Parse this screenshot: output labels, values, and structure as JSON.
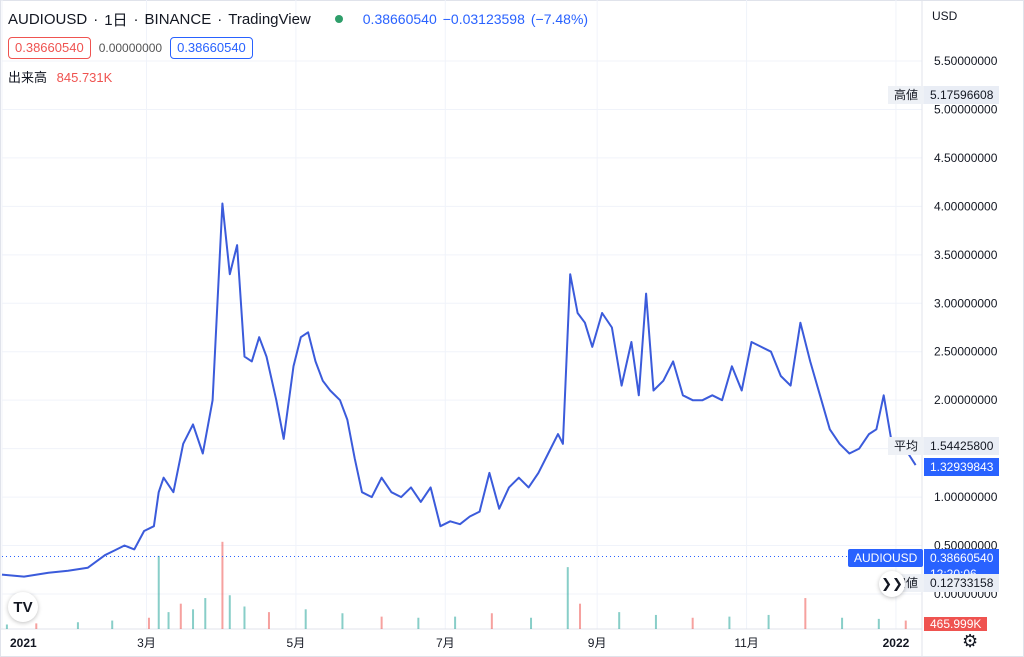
{
  "header": {
    "symbol": "AUDIOUSD",
    "interval": "1日",
    "exchange": "BINANCE",
    "source": "TradingView",
    "last_price": "0.38660540",
    "change": "−0.03123598",
    "change_pct": "(−7.48%)",
    "bid": "0.38660540",
    "spread": "0.00000000",
    "ask": "0.38660540",
    "volume_label": "出来高",
    "volume_value": "845.731K",
    "currency": "USD"
  },
  "tags": {
    "high_label": "高値",
    "high_value": "5.17596608",
    "avg_label": "平均",
    "avg_value": "1.54425800",
    "prev_value": "1.32939843",
    "symbol_label": "AUDIOUSD",
    "symbol_value": "0.38660540",
    "countdown": "12:20:06",
    "low_label": "安値",
    "low_value": "0.12733158",
    "volume_value": "465.999K"
  },
  "colors": {
    "line": "#3b5bdb",
    "up": "#26a69a",
    "down": "#ef5350",
    "accent": "#2962ff"
  },
  "chart_data": {
    "type": "line",
    "title": "AUDIOUSD",
    "y_ticks": [
      "5.50000000",
      "5.00000000",
      "4.50000000",
      "4.00000000",
      "3.50000000",
      "3.00000000",
      "2.50000000",
      "2.00000000",
      "1.50000000",
      "1.00000000",
      "0.50000000",
      "0.00000000"
    ],
    "x_ticks": [
      "2021",
      "3月",
      "5月",
      "7月",
      "9月",
      "11月",
      "2022"
    ],
    "ylim": [
      0,
      5.5
    ],
    "series": [
      {
        "points": [
          [
            "2021-01-01",
            0.2
          ],
          [
            "2021-01-10",
            0.18
          ],
          [
            "2021-01-20",
            0.22
          ],
          [
            "2021-01-28",
            0.24
          ],
          [
            "2021-02-05",
            0.27
          ],
          [
            "2021-02-12",
            0.4
          ],
          [
            "2021-02-16",
            0.45
          ],
          [
            "2021-02-20",
            0.5
          ],
          [
            "2021-02-24",
            0.46
          ],
          [
            "2021-02-28",
            0.65
          ],
          [
            "2021-03-04",
            0.7
          ],
          [
            "2021-03-06",
            1.05
          ],
          [
            "2021-03-08",
            1.2
          ],
          [
            "2021-03-12",
            1.05
          ],
          [
            "2021-03-16",
            1.55
          ],
          [
            "2021-03-20",
            1.75
          ],
          [
            "2021-03-24",
            1.45
          ],
          [
            "2021-03-28",
            2.0
          ],
          [
            "2021-04-01",
            4.03
          ],
          [
            "2021-04-04",
            3.3
          ],
          [
            "2021-04-07",
            3.6
          ],
          [
            "2021-04-10",
            2.45
          ],
          [
            "2021-04-13",
            2.4
          ],
          [
            "2021-04-16",
            2.65
          ],
          [
            "2021-04-19",
            2.45
          ],
          [
            "2021-04-23",
            2.0
          ],
          [
            "2021-04-26",
            1.6
          ],
          [
            "2021-04-30",
            2.35
          ],
          [
            "2021-05-03",
            2.65
          ],
          [
            "2021-05-06",
            2.7
          ],
          [
            "2021-05-09",
            2.4
          ],
          [
            "2021-05-12",
            2.2
          ],
          [
            "2021-05-15",
            2.1
          ],
          [
            "2021-05-19",
            2.0
          ],
          [
            "2021-05-22",
            1.8
          ],
          [
            "2021-05-25",
            1.4
          ],
          [
            "2021-05-28",
            1.05
          ],
          [
            "2021-06-01",
            1.0
          ],
          [
            "2021-06-05",
            1.2
          ],
          [
            "2021-06-09",
            1.05
          ],
          [
            "2021-06-13",
            1.0
          ],
          [
            "2021-06-17",
            1.1
          ],
          [
            "2021-06-21",
            0.95
          ],
          [
            "2021-06-25",
            1.1
          ],
          [
            "2021-06-29",
            0.7
          ],
          [
            "2021-07-03",
            0.75
          ],
          [
            "2021-07-07",
            0.72
          ],
          [
            "2021-07-11",
            0.8
          ],
          [
            "2021-07-15",
            0.85
          ],
          [
            "2021-07-19",
            1.25
          ],
          [
            "2021-07-23",
            0.88
          ],
          [
            "2021-07-27",
            1.1
          ],
          [
            "2021-07-31",
            1.2
          ],
          [
            "2021-08-04",
            1.1
          ],
          [
            "2021-08-08",
            1.25
          ],
          [
            "2021-08-12",
            1.45
          ],
          [
            "2021-08-16",
            1.65
          ],
          [
            "2021-08-18",
            1.55
          ],
          [
            "2021-08-21",
            3.3
          ],
          [
            "2021-08-24",
            2.9
          ],
          [
            "2021-08-27",
            2.8
          ],
          [
            "2021-08-30",
            2.55
          ],
          [
            "2021-09-03",
            2.9
          ],
          [
            "2021-09-07",
            2.75
          ],
          [
            "2021-09-11",
            2.15
          ],
          [
            "2021-09-15",
            2.6
          ],
          [
            "2021-09-18",
            2.05
          ],
          [
            "2021-09-21",
            3.1
          ],
          [
            "2021-09-24",
            2.1
          ],
          [
            "2021-09-28",
            2.2
          ],
          [
            "2021-10-02",
            2.4
          ],
          [
            "2021-10-06",
            2.05
          ],
          [
            "2021-10-10",
            2.0
          ],
          [
            "2021-10-14",
            2.0
          ],
          [
            "2021-10-18",
            2.05
          ],
          [
            "2021-10-22",
            2.0
          ],
          [
            "2021-10-26",
            2.35
          ],
          [
            "2021-10-30",
            2.1
          ],
          [
            "2021-11-03",
            2.6
          ],
          [
            "2021-11-07",
            2.55
          ],
          [
            "2021-11-11",
            2.5
          ],
          [
            "2021-11-15",
            2.25
          ],
          [
            "2021-11-19",
            2.15
          ],
          [
            "2021-11-23",
            2.8
          ],
          [
            "2021-11-27",
            2.4
          ],
          [
            "2021-12-01",
            2.05
          ],
          [
            "2021-12-05",
            1.7
          ],
          [
            "2021-12-09",
            1.55
          ],
          [
            "2021-12-13",
            1.45
          ],
          [
            "2021-12-17",
            1.5
          ],
          [
            "2021-12-21",
            1.65
          ],
          [
            "2021-12-24",
            1.7
          ],
          [
            "2021-12-27",
            2.05
          ],
          [
            "2021-12-30",
            1.6
          ],
          [
            "2022-01-02",
            1.6
          ],
          [
            "2022-01-06",
            1.45
          ],
          [
            "2022-01-09",
            1.33
          ]
        ]
      }
    ],
    "reference_lines": [
      {
        "label": "AUDIOUSD",
        "value": 0.3866
      }
    ],
    "volume": {
      "label": "出来高",
      "values": [
        [
          "2021-01-03",
          0.08
        ],
        [
          "2021-01-15",
          0.1
        ],
        [
          "2021-02-01",
          0.12
        ],
        [
          "2021-02-15",
          0.15
        ],
        [
          "2021-03-02",
          0.2
        ],
        [
          "2021-03-06",
          1.3
        ],
        [
          "2021-03-10",
          0.3
        ],
        [
          "2021-03-15",
          0.45
        ],
        [
          "2021-03-20",
          0.35
        ],
        [
          "2021-03-25",
          0.55
        ],
        [
          "2021-04-01",
          1.55
        ],
        [
          "2021-04-04",
          0.6
        ],
        [
          "2021-04-10",
          0.4
        ],
        [
          "2021-04-20",
          0.3
        ],
        [
          "2021-05-05",
          0.35
        ],
        [
          "2021-05-20",
          0.28
        ],
        [
          "2021-06-05",
          0.22
        ],
        [
          "2021-06-20",
          0.2
        ],
        [
          "2021-07-05",
          0.22
        ],
        [
          "2021-07-20",
          0.28
        ],
        [
          "2021-08-05",
          0.2
        ],
        [
          "2021-08-20",
          1.1
        ],
        [
          "2021-08-25",
          0.45
        ],
        [
          "2021-09-10",
          0.3
        ],
        [
          "2021-09-25",
          0.25
        ],
        [
          "2021-10-10",
          0.2
        ],
        [
          "2021-10-25",
          0.22
        ],
        [
          "2021-11-10",
          0.25
        ],
        [
          "2021-11-25",
          0.55
        ],
        [
          "2021-12-10",
          0.2
        ],
        [
          "2021-12-25",
          0.18
        ],
        [
          "2022-01-05",
          0.15
        ]
      ]
    }
  }
}
